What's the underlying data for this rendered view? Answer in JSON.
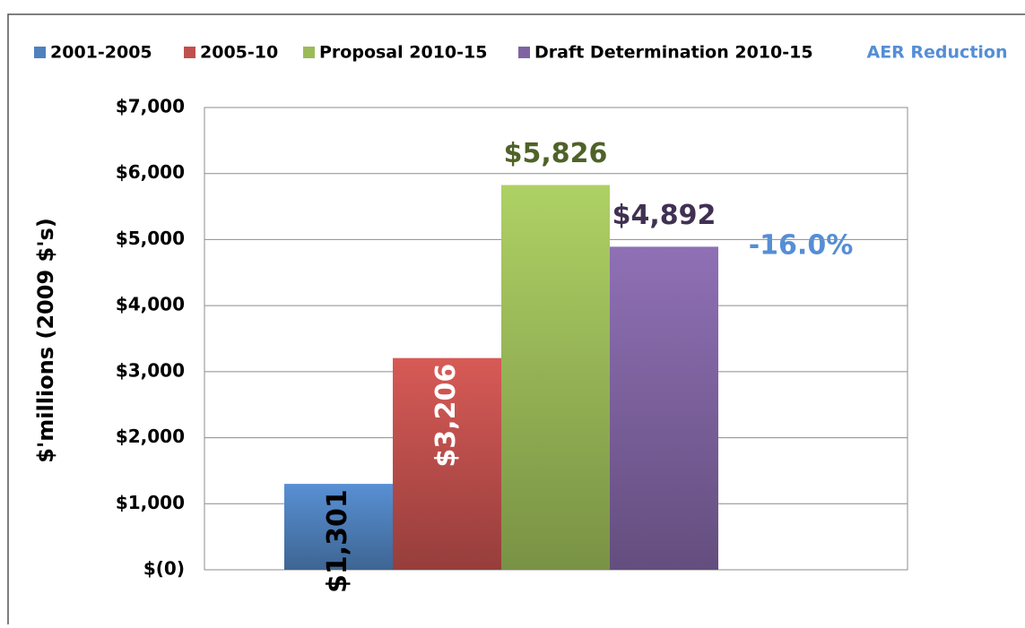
{
  "chart_data": {
    "type": "bar",
    "y_label": "$'millions (2009 $'s)",
    "categories": [
      null
    ],
    "series": [
      {
        "name": "2001-2005",
        "color": "#4f81bd",
        "values": [
          1301
        ],
        "value_labels": [
          "$1,301"
        ]
      },
      {
        "name": "2005-10",
        "color": "#c0504d",
        "values": [
          3206
        ],
        "value_labels": [
          "$3,206"
        ]
      },
      {
        "name": "Proposal 2010-15",
        "color": "#9bbb59",
        "values": [
          5826
        ],
        "value_labels": [
          "$5,826"
        ]
      },
      {
        "name": "Draft Determination 2010-15",
        "color": "#8064a2",
        "values": [
          4892
        ],
        "value_labels": [
          "$4,892"
        ]
      }
    ],
    "legend_note": "AER Reduction",
    "annotation": "-16.0%",
    "ylim": [
      0,
      7000
    ],
    "yticks": [
      {
        "value": 0,
        "label": "$(0)"
      },
      {
        "value": 1000,
        "label": "$1,000"
      },
      {
        "value": 2000,
        "label": "$2,000"
      },
      {
        "value": 3000,
        "label": "$3,000"
      },
      {
        "value": 4000,
        "label": "$4,000"
      },
      {
        "value": 5000,
        "label": "$5,000"
      },
      {
        "value": 6000,
        "label": "$6,000"
      },
      {
        "value": 7000,
        "label": "$7,000"
      }
    ],
    "grid": true
  }
}
